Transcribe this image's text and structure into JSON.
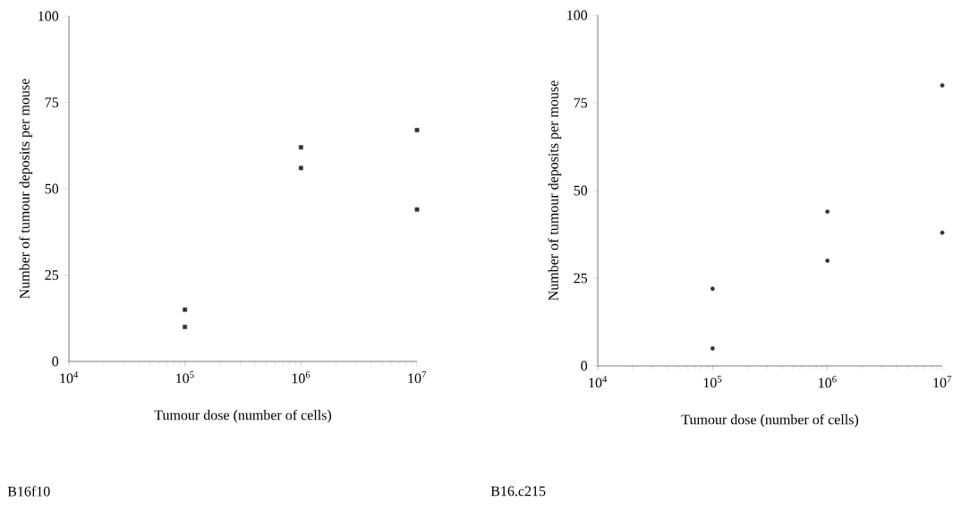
{
  "chart_data": [
    {
      "type": "scatter",
      "xlabel": "Tumour dose (number of cells)",
      "ylabel": "Number of tumour deposits per mouse",
      "annotations": [
        "B16f10"
      ],
      "marker": "square",
      "x": [
        100000,
        100000,
        1000000,
        1000000,
        10000000,
        10000000
      ],
      "values": [
        15,
        10,
        62,
        56,
        67,
        44
      ],
      "color": "#333333",
      "xlim": [
        10000,
        10000000
      ],
      "ylim": [
        0,
        100
      ],
      "log": "x",
      "xticks": [
        {
          "value": 10000,
          "label": "10$^{4}$"
        },
        {
          "value": 100000,
          "label": "10$^{5}$"
        },
        {
          "value": 1000000,
          "label": "10$^{6}$"
        },
        {
          "value": 10000000,
          "label": "10$^{7}$"
        }
      ],
      "yticks": [
        0,
        25,
        50,
        75,
        100
      ]
    },
    {
      "type": "scatter",
      "xlabel": "Tumour dose (number of cells)",
      "ylabel": "Number of tumour deposits per mouse",
      "annotations": [
        "B16.c215"
      ],
      "marker": "circle",
      "x": [
        100000,
        100000,
        1000000,
        1000000,
        10000000,
        10000000
      ],
      "values": [
        22,
        5,
        44,
        30,
        80,
        38
      ],
      "color": "#333333",
      "xlim": [
        10000,
        10000000
      ],
      "ylim": [
        0,
        100
      ],
      "log": "x",
      "xticks": [
        {
          "value": 10000,
          "label": "10$^{4}$"
        },
        {
          "value": 100000,
          "label": "10$^{5}$"
        },
        {
          "value": 1000000,
          "label": "10$^{6}$"
        },
        {
          "value": 10000000,
          "label": "10$^{7}$"
        }
      ],
      "yticks": [
        0,
        25,
        50,
        75,
        100
      ]
    }
  ]
}
